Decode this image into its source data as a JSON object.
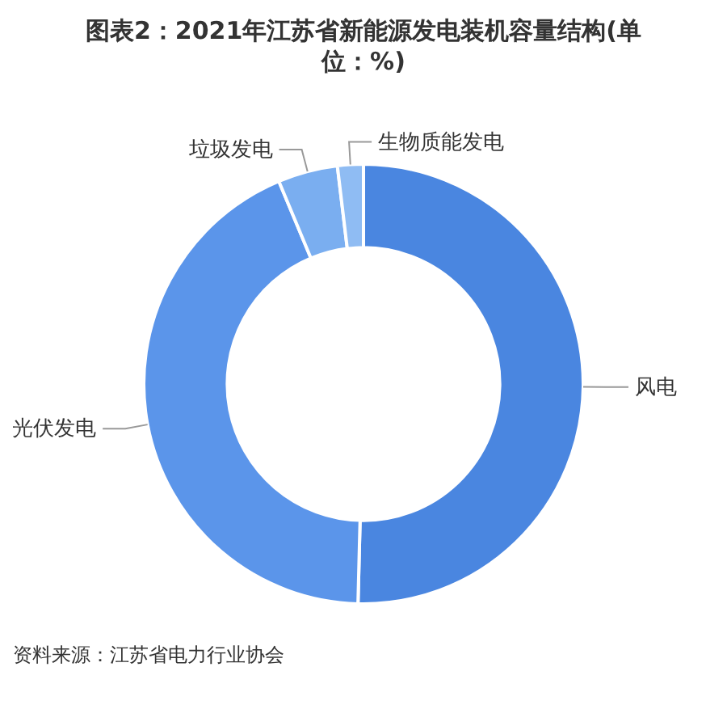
{
  "chart_data": {
    "type": "donut",
    "title": "图表2：2021年江苏省新能源发电装机容量结构(单位：%)",
    "categories": [
      "风电",
      "光伏发电",
      "垃圾发电",
      "生物质能发电"
    ],
    "values": [
      50.4,
      43.3,
      4.4,
      1.9
    ],
    "colors": [
      "#4a86e0",
      "#5b95ea",
      "#7aaef0",
      "#8fbcf3"
    ],
    "legend": false,
    "annotations": [
      "资料来源：江苏省电力行业协会"
    ]
  }
}
